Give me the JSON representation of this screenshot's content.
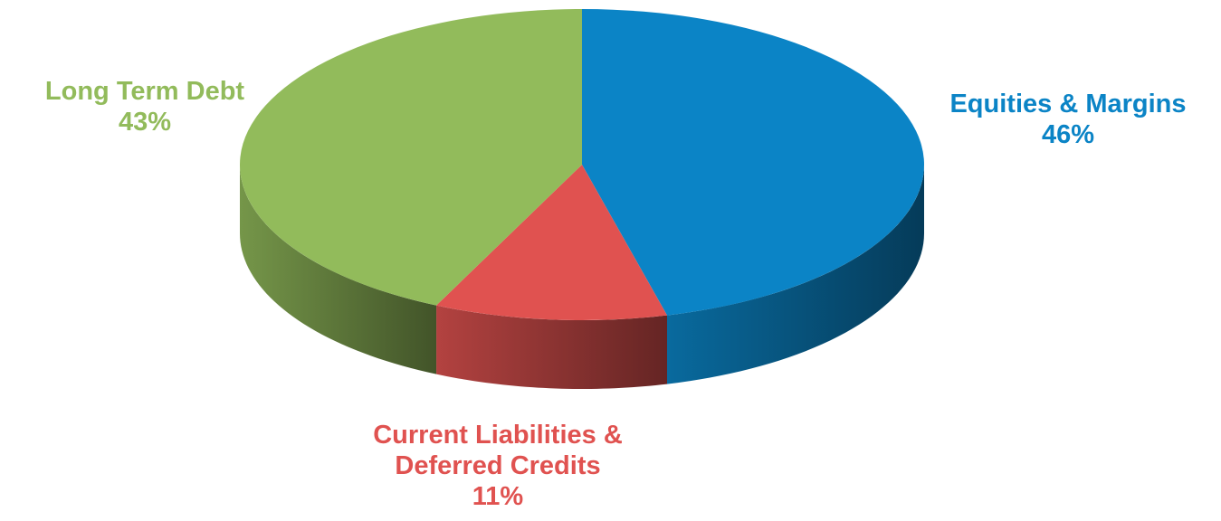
{
  "chart_data": {
    "type": "pie",
    "categories": [
      "Equities & Margins",
      "Current Liabilities & Deferred Credits",
      "Long Term Debt"
    ],
    "values": [
      46,
      11,
      43
    ],
    "value_labels": [
      "46%",
      "11%",
      "43%"
    ],
    "colors": [
      "#0b84c6",
      "#e05250",
      "#92bb5b"
    ]
  }
}
